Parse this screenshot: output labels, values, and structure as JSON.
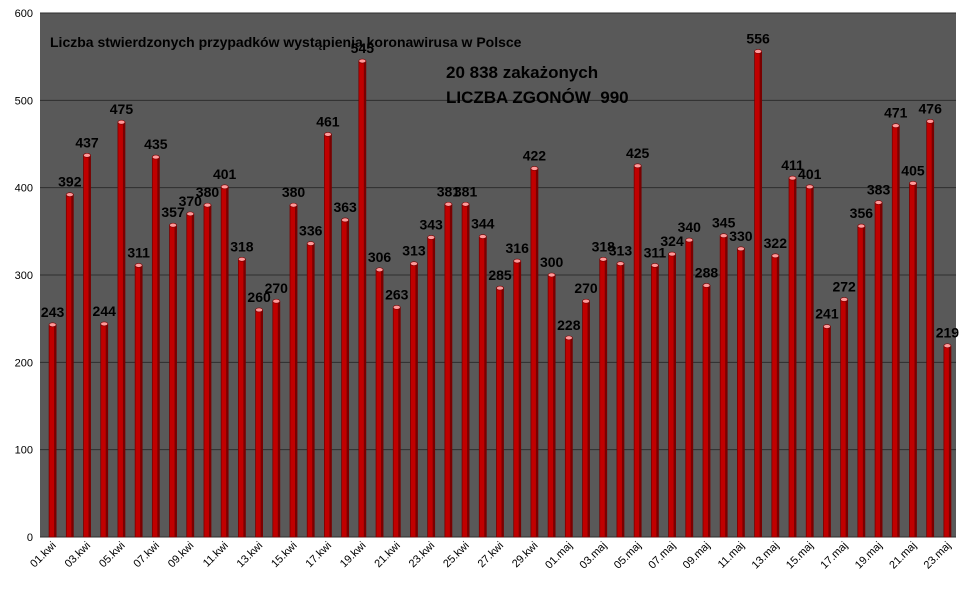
{
  "chart_data": {
    "type": "bar",
    "title": "Liczba stwierdzonych przypadków wystąpienia koronawirusa w Polsce",
    "annotations": [
      "20 838 zakażonych",
      "LICZBA ZGONÓW  990"
    ],
    "ylim": [
      0,
      600
    ],
    "yticks": [
      0,
      100,
      200,
      300,
      400,
      500,
      600
    ],
    "grid": true,
    "categories": [
      "01.kwi",
      "02.kwi",
      "03.kwi",
      "04.kwi",
      "05.kwi",
      "06.kwi",
      "07.kwi",
      "08.kwi",
      "09.kwi",
      "10.kwi",
      "11.kwi",
      "12.kwi",
      "13.kwi",
      "14.kwi",
      "15.kwi",
      "16.kwi",
      "17.kwi",
      "18.kwi",
      "19.kwi",
      "20.kwi",
      "21.kwi",
      "22.kwi",
      "23.kwi",
      "24.kwi",
      "25.kwi",
      "26.kwi",
      "27.kwi",
      "28.kwi",
      "29.kwi",
      "30.kwi",
      "01.maj",
      "02.maj",
      "03.maj",
      "04.maj",
      "05.maj",
      "06.maj",
      "07.maj",
      "08.maj",
      "09.maj",
      "10.maj",
      "11.maj",
      "12.maj",
      "13.maj",
      "14.maj",
      "15.maj",
      "16.maj",
      "17.maj",
      "18.maj",
      "19.maj",
      "20.maj",
      "21.maj",
      "22.maj",
      "23.maj"
    ],
    "values": [
      243,
      392,
      437,
      244,
      475,
      311,
      435,
      357,
      370,
      380,
      401,
      318,
      260,
      270,
      380,
      336,
      461,
      363,
      545,
      306,
      263,
      313,
      343,
      381,
      381,
      344,
      285,
      316,
      422,
      300,
      228,
      270,
      318,
      313,
      425,
      311,
      324,
      340,
      288,
      345,
      330,
      556,
      322,
      411,
      401,
      241,
      272,
      356,
      383,
      471,
      405,
      476,
      219
    ],
    "xtick_labels": [
      "01.kwi",
      "03.kwi",
      "05.kwi",
      "07.kwi",
      "09.kwi",
      "11.kwi",
      "13.kwi",
      "15.kwi",
      "17.kwi",
      "19.kwi",
      "21.kwi",
      "23.kwi",
      "25.kwi",
      "27.kwi",
      "29.kwi",
      "01.maj",
      "03.maj",
      "05.maj",
      "07.maj",
      "09.maj",
      "11.maj",
      "13.maj",
      "15.maj",
      "17.maj",
      "19.maj",
      "21.maj",
      "23.maj"
    ],
    "colors": {
      "plot_bg": "#595959",
      "bar": "#c00000",
      "bar_dark": "#7a0000",
      "bar_top": "#ff9a9a",
      "grid": "#2e2e2e"
    }
  }
}
